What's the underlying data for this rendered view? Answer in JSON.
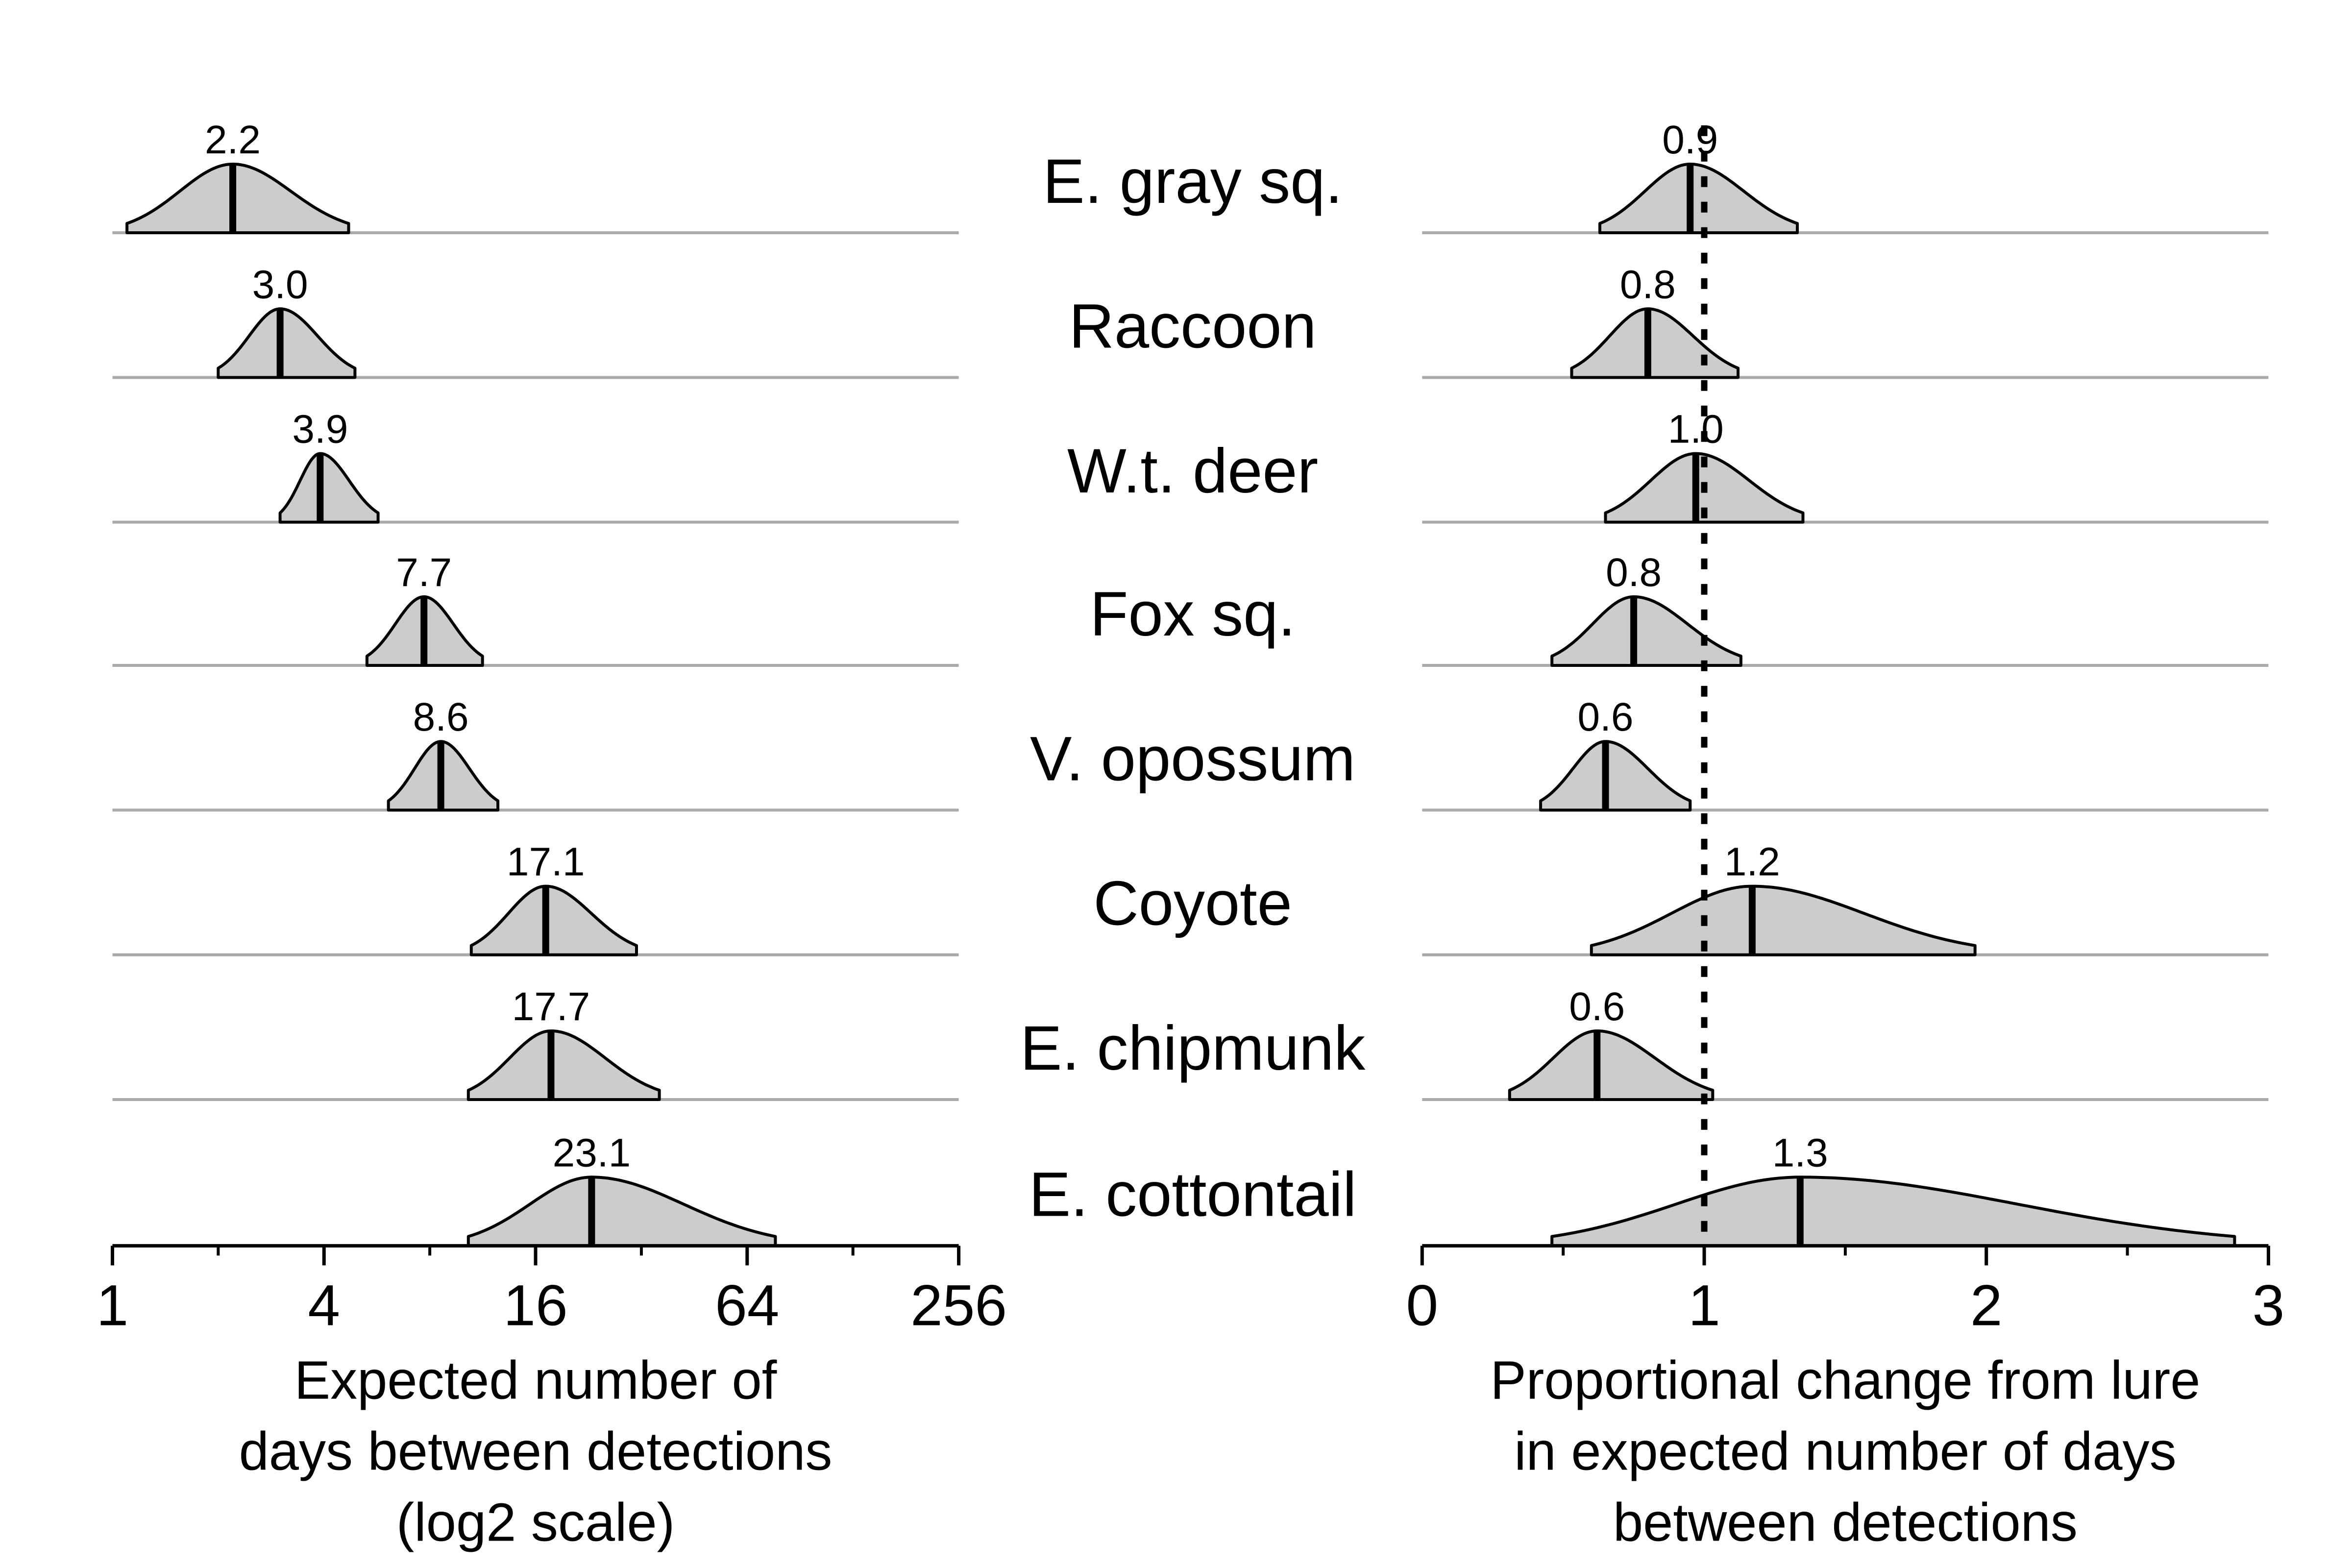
{
  "chart_data": [
    {
      "type": "density",
      "xlabel": [
        "Expected number of",
        "days between detections",
        "(log2 scale)"
      ],
      "x_scale": "log2",
      "xlim": [
        1,
        256
      ],
      "tick_labels": [
        "1",
        "4",
        "16",
        "64",
        "256"
      ],
      "series": [
        {
          "name": "E. gray sq.",
          "value_label": "2.2",
          "mean": 2.2,
          "lower": 1.1,
          "upper": 4.7
        },
        {
          "name": "Raccoon",
          "value_label": "3.0",
          "mean": 3.0,
          "lower": 2.0,
          "upper": 4.9
        },
        {
          "name": "W.t. deer",
          "value_label": "3.9",
          "mean": 3.9,
          "lower": 3.0,
          "upper": 5.7
        },
        {
          "name": "Fox sq.",
          "value_label": "7.7",
          "mean": 7.7,
          "lower": 5.3,
          "upper": 11.3
        },
        {
          "name": "V. opossum",
          "value_label": "8.6",
          "mean": 8.6,
          "lower": 6.1,
          "upper": 12.5
        },
        {
          "name": "Coyote",
          "value_label": "17.1",
          "mean": 17.1,
          "lower": 10.5,
          "upper": 31.0
        },
        {
          "name": "E. chipmunk",
          "value_label": "17.7",
          "mean": 17.7,
          "lower": 10.3,
          "upper": 36.0
        },
        {
          "name": "E. cottontail",
          "value_label": "23.1",
          "mean": 23.1,
          "lower": 10.3,
          "upper": 77.0
        }
      ]
    },
    {
      "type": "density",
      "xlabel": [
        "Proportional change from lure",
        "in expected number of days",
        "between detections"
      ],
      "x_scale": "linear",
      "xlim": [
        0,
        3
      ],
      "tick_labels": [
        "0",
        "1",
        "2",
        "3"
      ],
      "reference_line": 1,
      "series": [
        {
          "name": "E. gray sq.",
          "value_label": "0.9",
          "mean": 0.95,
          "lower": 0.63,
          "upper": 1.33
        },
        {
          "name": "Raccoon",
          "value_label": "0.8",
          "mean": 0.8,
          "lower": 0.53,
          "upper": 1.12
        },
        {
          "name": "W.t. deer",
          "value_label": "1.0",
          "mean": 0.97,
          "lower": 0.65,
          "upper": 1.35
        },
        {
          "name": "Fox sq.",
          "value_label": "0.8",
          "mean": 0.75,
          "lower": 0.46,
          "upper": 1.13
        },
        {
          "name": "V. opossum",
          "value_label": "0.6",
          "mean": 0.65,
          "lower": 0.42,
          "upper": 0.95
        },
        {
          "name": "Coyote",
          "value_label": "1.2",
          "mean": 1.17,
          "lower": 0.6,
          "upper": 1.96
        },
        {
          "name": "E. chipmunk",
          "value_label": "0.6",
          "mean": 0.62,
          "lower": 0.31,
          "upper": 1.03
        },
        {
          "name": "E. cottontail",
          "value_label": "1.3",
          "mean": 1.34,
          "lower": 0.46,
          "upper": 2.88
        }
      ]
    }
  ]
}
